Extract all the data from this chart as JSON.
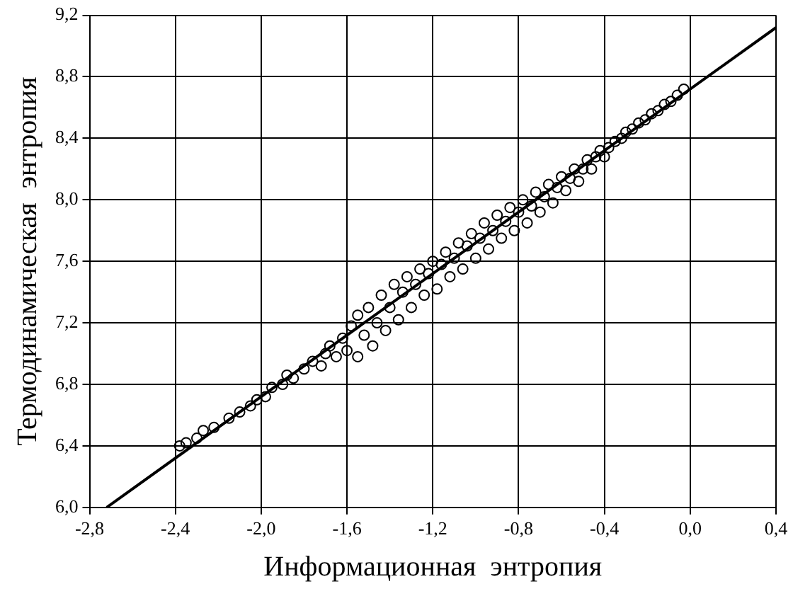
{
  "chart_data": {
    "type": "scatter",
    "xlabel": "Информационная  энтропия",
    "ylabel": "Термодинамическая  энтропия",
    "xlim": [
      -2.8,
      0.4
    ],
    "ylim": [
      6.0,
      9.2
    ],
    "xticks": [
      {
        "value": -2.8,
        "label": "-2,8"
      },
      {
        "value": -2.4,
        "label": "-2,4"
      },
      {
        "value": -2.0,
        "label": "-2,0"
      },
      {
        "value": -1.6,
        "label": "-1,6"
      },
      {
        "value": -1.2,
        "label": "-1,2"
      },
      {
        "value": -0.8,
        "label": "-0,8"
      },
      {
        "value": -0.4,
        "label": "-0,4"
      },
      {
        "value": 0.0,
        "label": "0,0"
      },
      {
        "value": 0.4,
        "label": "0,4"
      }
    ],
    "yticks": [
      {
        "value": 6.0,
        "label": "6,0"
      },
      {
        "value": 6.4,
        "label": "6,4"
      },
      {
        "value": 6.8,
        "label": "6,8"
      },
      {
        "value": 7.2,
        "label": "7,2"
      },
      {
        "value": 7.6,
        "label": "7,6"
      },
      {
        "value": 8.0,
        "label": "8,0"
      },
      {
        "value": 8.4,
        "label": "8,4"
      },
      {
        "value": 8.8,
        "label": "8,8"
      },
      {
        "value": 9.2,
        "label": "9,2"
      }
    ],
    "grid": true,
    "legend": false,
    "series": [
      {
        "type": "scatter",
        "marker": "circle",
        "color": "#000000",
        "x": [
          -2.38,
          -2.35,
          -2.3,
          -2.27,
          -2.22,
          -2.15,
          -2.1,
          -2.05,
          -2.02,
          -1.98,
          -1.95,
          -1.9,
          -1.88,
          -1.85,
          -1.8,
          -1.76,
          -1.72,
          -1.7,
          -1.68,
          -1.65,
          -1.62,
          -1.6,
          -1.58,
          -1.55,
          -1.55,
          -1.52,
          -1.5,
          -1.48,
          -1.46,
          -1.44,
          -1.42,
          -1.4,
          -1.38,
          -1.36,
          -1.34,
          -1.32,
          -1.3,
          -1.28,
          -1.26,
          -1.24,
          -1.22,
          -1.2,
          -1.18,
          -1.16,
          -1.14,
          -1.12,
          -1.1,
          -1.08,
          -1.06,
          -1.04,
          -1.02,
          -1.0,
          -0.98,
          -0.96,
          -0.94,
          -0.92,
          -0.9,
          -0.88,
          -0.86,
          -0.84,
          -0.82,
          -0.8,
          -0.78,
          -0.76,
          -0.74,
          -0.72,
          -0.7,
          -0.68,
          -0.66,
          -0.64,
          -0.62,
          -0.6,
          -0.58,
          -0.56,
          -0.54,
          -0.52,
          -0.5,
          -0.48,
          -0.46,
          -0.44,
          -0.42,
          -0.4,
          -0.38,
          -0.35,
          -0.32,
          -0.3,
          -0.27,
          -0.24,
          -0.21,
          -0.18,
          -0.15,
          -0.12,
          -0.09,
          -0.06,
          -0.03
        ],
        "values": [
          6.4,
          6.42,
          6.45,
          6.5,
          6.52,
          6.58,
          6.62,
          6.66,
          6.7,
          6.72,
          6.78,
          6.8,
          6.86,
          6.84,
          6.9,
          6.95,
          6.92,
          7.0,
          7.05,
          6.98,
          7.1,
          7.02,
          7.18,
          7.25,
          6.98,
          7.12,
          7.3,
          7.05,
          7.2,
          7.38,
          7.15,
          7.3,
          7.45,
          7.22,
          7.4,
          7.5,
          7.3,
          7.45,
          7.55,
          7.38,
          7.52,
          7.6,
          7.42,
          7.58,
          7.66,
          7.5,
          7.62,
          7.72,
          7.55,
          7.7,
          7.78,
          7.62,
          7.75,
          7.85,
          7.68,
          7.8,
          7.9,
          7.75,
          7.86,
          7.95,
          7.8,
          7.92,
          8.0,
          7.85,
          7.96,
          8.05,
          7.92,
          8.02,
          8.1,
          7.98,
          8.08,
          8.15,
          8.06,
          8.14,
          8.2,
          8.12,
          8.2,
          8.26,
          8.2,
          8.28,
          8.32,
          8.28,
          8.34,
          8.38,
          8.4,
          8.44,
          8.46,
          8.5,
          8.52,
          8.56,
          8.58,
          8.62,
          8.64,
          8.68,
          8.72
        ]
      },
      {
        "type": "line",
        "marker": "none",
        "color": "#000000",
        "x": [
          -2.72,
          0.4
        ],
        "values": [
          6.0,
          9.12
        ]
      }
    ]
  }
}
